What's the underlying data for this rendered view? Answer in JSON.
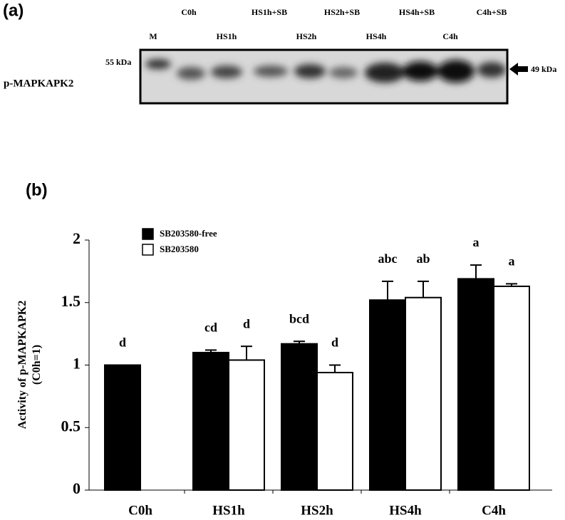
{
  "panel_a": {
    "panel_label": "(a)",
    "lanes_top": [
      "C0h",
      "HS1h+SB",
      "HS2h+SB",
      "HS4h+SB",
      "C4h+SB"
    ],
    "lanes_bottom": [
      "M",
      "HS1h",
      "HS2h",
      "HS4h",
      "C4h"
    ],
    "row_label": "p-MAPKAPK2",
    "marker_left": "55 kDa",
    "marker_right": "49 kDa"
  },
  "chart_data": {
    "type": "bar",
    "panel_label": "(b)",
    "ylabel": [
      "Activity of p-MAPKAPK2",
      "(C0h=1)"
    ],
    "categories": [
      "C0h",
      "HS1h",
      "HS2h",
      "HS4h",
      "C4h"
    ],
    "series": [
      {
        "name": "SB203580-free",
        "color": "#000000",
        "values": [
          1.0,
          1.1,
          1.17,
          1.52,
          1.69
        ],
        "errors": [
          null,
          0.02,
          0.02,
          0.15,
          0.11
        ],
        "annotations": [
          "d",
          "cd",
          "bcd",
          "abc",
          "a"
        ]
      },
      {
        "name": "SB203580",
        "color": "#ffffff",
        "values": [
          null,
          1.04,
          0.94,
          1.54,
          1.63
        ],
        "errors": [
          null,
          0.11,
          0.06,
          0.13,
          0.02
        ],
        "annotations": [
          null,
          "d",
          "d",
          "ab",
          "a"
        ]
      }
    ],
    "ylim": [
      0,
      2
    ],
    "yticks": [
      0,
      0.5,
      1,
      1.5,
      2
    ],
    "grid": false,
    "legend": "top-left"
  }
}
